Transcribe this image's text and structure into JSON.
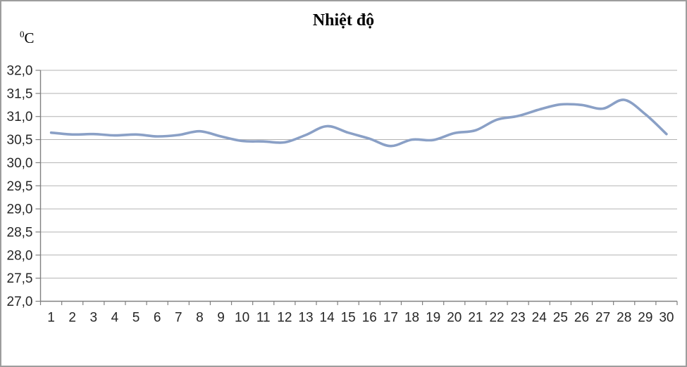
{
  "chart_data": {
    "type": "line",
    "title": "Nhiệt độ",
    "unit_sup": "0",
    "unit_base": "C",
    "xlabel": "",
    "ylabel": "0C",
    "categories": [
      "1",
      "2",
      "3",
      "4",
      "5",
      "6",
      "7",
      "8",
      "9",
      "10",
      "11",
      "12",
      "13",
      "14",
      "15",
      "16",
      "17",
      "18",
      "19",
      "20",
      "21",
      "22",
      "23",
      "24",
      "25",
      "26",
      "27",
      "28",
      "29",
      "30"
    ],
    "series": [
      {
        "name": "Nhiệt độ",
        "values": [
          30.65,
          30.61,
          30.62,
          30.59,
          30.61,
          30.57,
          30.6,
          30.68,
          30.57,
          30.47,
          30.46,
          30.44,
          30.6,
          30.79,
          30.65,
          30.52,
          30.36,
          30.5,
          30.49,
          30.64,
          30.7,
          30.93,
          31.01,
          31.15,
          31.26,
          31.25,
          31.17,
          31.36,
          31.05,
          30.62
        ]
      }
    ],
    "ylim": [
      27.0,
      32.0
    ],
    "y_tick_step": 0.5,
    "y_tick_labels": [
      "32,0",
      "31,5",
      "31,0",
      "30,5",
      "30,0",
      "29,5",
      "29,0",
      "28,5",
      "28,0",
      "27,5",
      "27,0"
    ],
    "grid": true,
    "legend_position": "none",
    "smoothed": true,
    "line_color": "#8aa0c6",
    "grid_color": "#b3b3b3",
    "axis_color": "#808080",
    "text_color": "#262626",
    "border_color": "#9d9d9d"
  }
}
